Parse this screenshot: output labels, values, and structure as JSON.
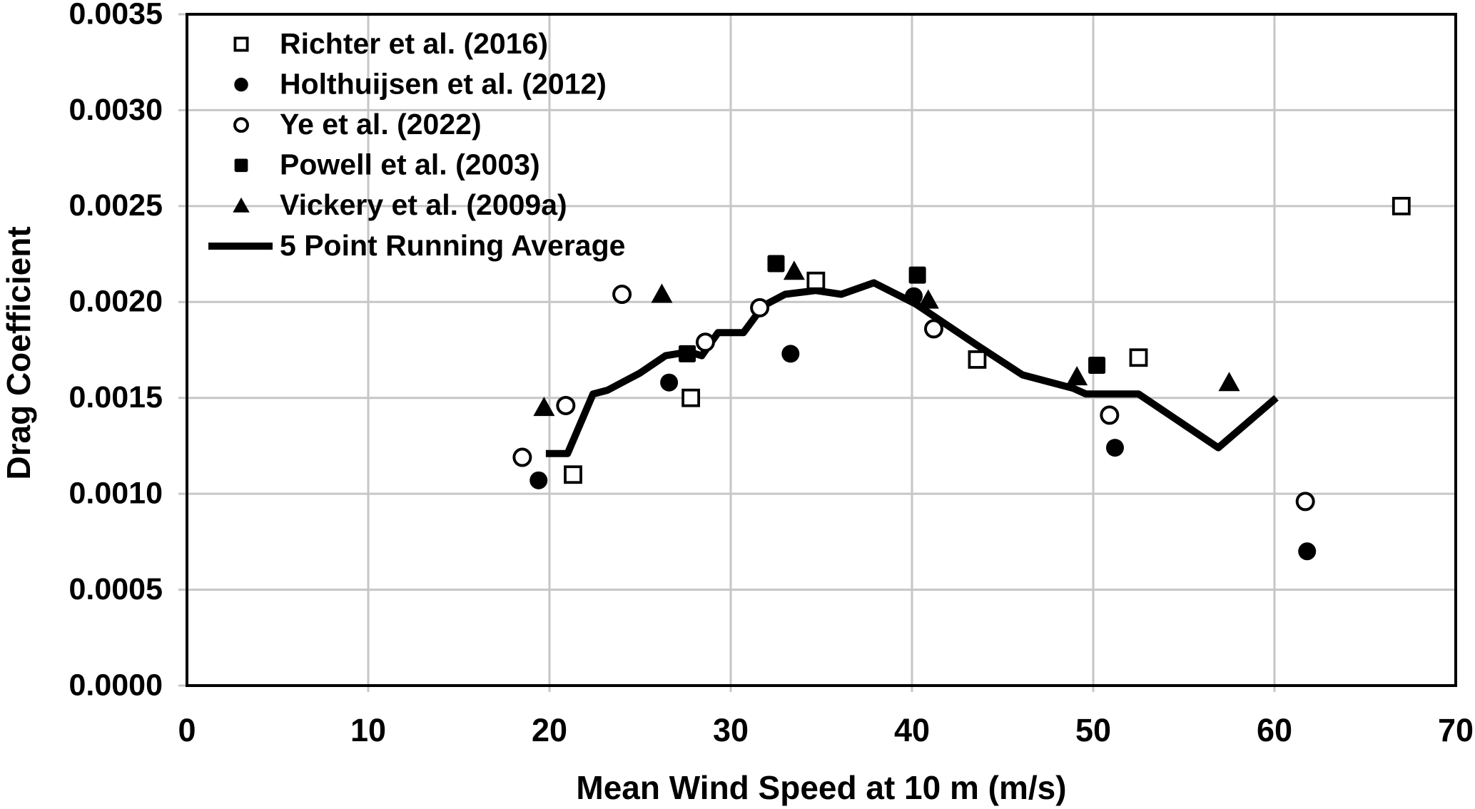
{
  "chart_data": {
    "type": "scatter",
    "title": "",
    "xlabel": "Mean Wind Speed at 10 m (m/s)",
    "ylabel": "Drag Coefficient",
    "xlim": [
      0,
      70
    ],
    "ylim": [
      0.0,
      0.0035
    ],
    "x_ticks": [
      0,
      10,
      20,
      30,
      40,
      50,
      60,
      70
    ],
    "y_tick_values": [
      0.0,
      0.0005,
      0.001,
      0.0015,
      0.002,
      0.0025,
      0.003,
      0.0035
    ],
    "y_tick_labels": [
      "0.0000",
      "0.0005",
      "0.0010",
      "0.0015",
      "0.0020",
      "0.0025",
      "0.0030",
      "0.0035"
    ],
    "grid": true,
    "legend_position": "top-left-inside",
    "series": [
      {
        "name": "Richter et al. (2016)",
        "marker": "square-open",
        "points": [
          [
            21.3,
            0.0011
          ],
          [
            27.8,
            0.0015
          ],
          [
            34.7,
            0.00211
          ],
          [
            43.6,
            0.0017
          ],
          [
            52.5,
            0.00171
          ],
          [
            67.0,
            0.0025
          ]
        ]
      },
      {
        "name": "Holthuijsen et al. (2012)",
        "marker": "circle-filled",
        "points": [
          [
            19.4,
            0.00107
          ],
          [
            26.6,
            0.00158
          ],
          [
            33.3,
            0.00173
          ],
          [
            40.1,
            0.00203
          ],
          [
            51.2,
            0.00124
          ],
          [
            61.8,
            0.0007
          ]
        ]
      },
      {
        "name": "Ye et al. (2022)",
        "marker": "circle-open",
        "points": [
          [
            18.5,
            0.00119
          ],
          [
            20.9,
            0.00146
          ],
          [
            24.0,
            0.00204
          ],
          [
            28.6,
            0.00179
          ],
          [
            31.6,
            0.00197
          ],
          [
            41.2,
            0.00186
          ],
          [
            50.9,
            0.00141
          ],
          [
            61.7,
            0.00096
          ]
        ]
      },
      {
        "name": "Powell et al. (2003)",
        "marker": "square-filled",
        "points": [
          [
            27.6,
            0.00173
          ],
          [
            32.5,
            0.0022
          ],
          [
            40.3,
            0.00214
          ],
          [
            50.2,
            0.00167
          ]
        ]
      },
      {
        "name": "Vickery et al. (2009a)",
        "marker": "triangle-filled",
        "points": [
          [
            19.7,
            0.00145
          ],
          [
            26.2,
            0.00204
          ],
          [
            33.5,
            0.00216
          ],
          [
            40.9,
            0.00201
          ],
          [
            49.1,
            0.00161
          ],
          [
            57.5,
            0.00158
          ]
        ]
      },
      {
        "name": "5 Point Running Average",
        "marker": "line",
        "line_points": [
          [
            19.8,
            0.00121
          ],
          [
            21.0,
            0.00121
          ],
          [
            22.4,
            0.00152
          ],
          [
            23.2,
            0.00154
          ],
          [
            25.0,
            0.00163
          ],
          [
            26.4,
            0.00172
          ],
          [
            27.7,
            0.00174
          ],
          [
            28.4,
            0.00172
          ],
          [
            29.3,
            0.00184
          ],
          [
            30.7,
            0.00184
          ],
          [
            31.8,
            0.00198
          ],
          [
            33.0,
            0.00204
          ],
          [
            34.7,
            0.00206
          ],
          [
            36.1,
            0.00204
          ],
          [
            37.9,
            0.0021
          ],
          [
            40.2,
            0.00199
          ],
          [
            43.5,
            0.00178
          ],
          [
            46.1,
            0.00162
          ],
          [
            48.9,
            0.00155
          ],
          [
            49.6,
            0.00152
          ],
          [
            52.5,
            0.00152
          ],
          [
            56.9,
            0.00124
          ],
          [
            60.1,
            0.0015
          ]
        ]
      }
    ]
  },
  "colors": {
    "foreground": "#000000",
    "gridline": "#c6c6c6",
    "background": "#ffffff"
  }
}
